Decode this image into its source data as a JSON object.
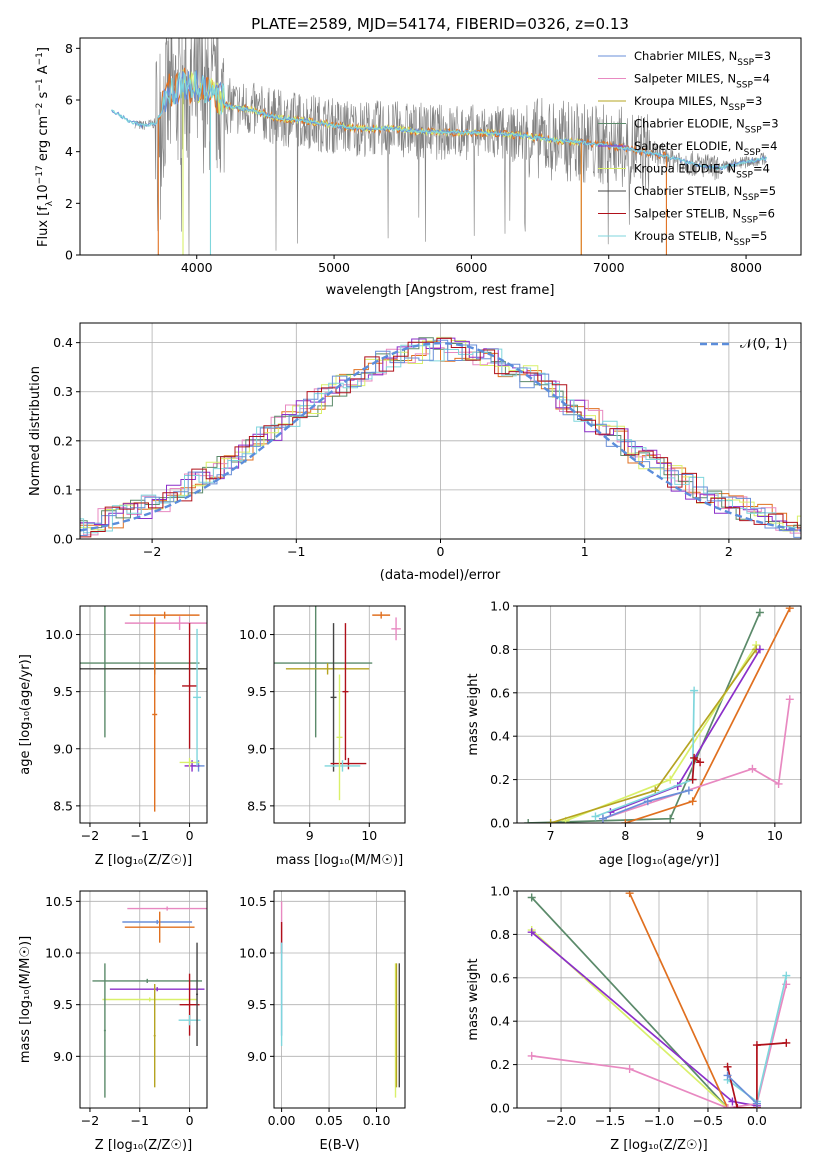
{
  "figure_title": "PLATE=2589, MJD=54174, FIBERID=0326, z=0.13",
  "colors": {
    "Chabrier MILES": "#6a8fd8",
    "Salpeter MILES": "#e889c1",
    "Kroupa MILES": "#b5a422",
    "Chabrier ELODIE": "#5b8a6a",
    "Salpeter ELODIE": "#8b2fc9",
    "Kroupa ELODIE": "#d9f06a",
    "Chabrier STELIB": "#444444",
    "Salpeter STELIB": "#b0101a",
    "Kroupa STELIB": "#7fd6dc",
    "data": "#808080",
    "orange": "#e07020",
    "normal": "#5b8ddb"
  },
  "chart_data": [
    {
      "id": "spectrum",
      "type": "line",
      "title": "PLATE=2589, MJD=54174, FIBERID=0326, z=0.13",
      "xlabel": "wavelength [Angstrom, rest frame]",
      "ylabel_parts": [
        "Flux [f",
        "λ",
        "10",
        "−17",
        " erg cm",
        "−2",
        " s",
        "−1",
        " A",
        "−1",
        "]"
      ],
      "xlim": [
        3150,
        8400
      ],
      "ylim": [
        0,
        8.4
      ],
      "xticks": [
        4000,
        5000,
        6000,
        7000,
        8000
      ],
      "yticks": [
        0,
        2,
        4,
        6,
        8
      ],
      "legend": "top-right",
      "legend_entries": [
        {
          "name": "Chabrier MILES",
          "nssp": "3"
        },
        {
          "name": "Salpeter MILES",
          "nssp": "4"
        },
        {
          "name": "Kroupa MILES",
          "nssp": "3"
        },
        {
          "name": "Chabrier ELODIE",
          "nssp": "3"
        },
        {
          "name": "Salpeter ELODIE",
          "nssp": "4"
        },
        {
          "name": "Kroupa ELODIE",
          "nssp": "4"
        },
        {
          "name": "Chabrier STELIB",
          "nssp": "5"
        },
        {
          "name": "Salpeter STELIB",
          "nssp": "6"
        },
        {
          "name": "Kroupa STELIB",
          "nssp": "5"
        }
      ],
      "continuum": {
        "x": [
          3380,
          3500,
          3600,
          3700,
          3750,
          3800,
          3900,
          4000,
          4100,
          4200,
          4400,
          4600,
          4800,
          5000,
          5200,
          5400,
          5600,
          5800,
          6000,
          6200,
          6400,
          6600,
          6800,
          7000,
          7200,
          7400,
          7600,
          7800,
          8000,
          8150
        ],
        "y": [
          5.6,
          5.2,
          5.0,
          5.1,
          5.6,
          6.1,
          6.3,
          6.3,
          6.0,
          5.8,
          5.6,
          5.3,
          5.2,
          5.0,
          4.9,
          4.9,
          4.8,
          4.75,
          4.75,
          4.7,
          4.6,
          4.45,
          4.35,
          4.25,
          4.05,
          3.85,
          3.55,
          3.35,
          3.6,
          3.75
        ]
      }
    },
    {
      "id": "residuals",
      "type": "histogram",
      "xlabel": "(data-model)/error",
      "ylabel": "Normed distribution",
      "xlim": [
        -2.5,
        2.5
      ],
      "ylim": [
        0,
        0.44
      ],
      "xticks": [
        -2,
        -1,
        0,
        1,
        2
      ],
      "yticks": [
        0.0,
        0.1,
        0.2,
        0.3,
        0.4
      ],
      "legend_label": "𝒩(0, 1)",
      "legend": "top-right",
      "reference": {
        "name": "𝒩(0, 1)",
        "mean": 0,
        "sd": 1
      }
    },
    {
      "id": "age_vs_Z",
      "type": "errorbar",
      "xlabel": "Z [log₁₀(Z/Z☉)]",
      "ylabel": "age  [log₁₀(age/yr)]",
      "xlim": [
        -2.2,
        0.35
      ],
      "ylim": [
        8.35,
        10.25
      ],
      "xticks": [
        -2,
        -1,
        0
      ],
      "yticks": [
        8.5,
        9.0,
        9.5,
        10.0
      ],
      "points": [
        {
          "model": "Chabrier MILES",
          "x": 0.18,
          "y": 8.85,
          "xerr": 0.12,
          "yerr": 0.05
        },
        {
          "model": "Salpeter MILES",
          "x": -0.2,
          "y": 10.1,
          "xerr": 1.1,
          "yerr": 0.06
        },
        {
          "model": "Kroupa MILES",
          "x": -0.7,
          "y": 9.7,
          "xerr": 1.0,
          "yerr": 0.05
        },
        {
          "model": "Chabrier ELODIE",
          "x": -1.7,
          "y": 9.75,
          "xerr": 1.9,
          "yerr": 0.65
        },
        {
          "model": "Salpeter ELODIE",
          "x": 0.05,
          "y": 8.85,
          "xerr": 0.15,
          "yerr": 0.05
        },
        {
          "model": "Kroupa ELODIE",
          "x": 0.0,
          "y": 8.88,
          "xerr": 0.2,
          "yerr": 0.04
        },
        {
          "model": "Chabrier STELIB",
          "x": -0.7,
          "y": 9.7,
          "xerr": 1.6,
          "yerr": 0.05
        },
        {
          "model": "Salpeter STELIB",
          "x": 0.0,
          "y": 9.55,
          "xerr": 0.15,
          "yerr": 0.55
        },
        {
          "model": "Kroupa STELIB",
          "x": 0.15,
          "y": 9.45,
          "xerr": 0.08,
          "yerr": 0.6
        },
        {
          "model": "orange",
          "x": -0.7,
          "y": 9.3,
          "xerr": 0.05,
          "yerr": 0.85
        },
        {
          "model": "orange",
          "x": -0.5,
          "y": 10.17,
          "xerr": 0.7,
          "yerr": 0.03
        }
      ]
    },
    {
      "id": "age_vs_mass",
      "type": "errorbar",
      "xlabel": "mass [log₁₀(M/M☉)]",
      "ylabel": "",
      "xlim": [
        8.4,
        10.6
      ],
      "ylim": [
        8.35,
        10.25
      ],
      "xticks": [
        9,
        10
      ],
      "yticks": [
        8.5,
        9.0,
        9.5,
        10.0
      ],
      "points": [
        {
          "model": "Chabrier ELODIE",
          "x": 9.1,
          "y": 9.75,
          "xerr": 0.95,
          "yerr": 0.65
        },
        {
          "model": "Kroupa MILES",
          "x": 9.3,
          "y": 9.7,
          "xerr": 0.7,
          "yerr": 0.05
        },
        {
          "model": "Chabrier STELIB",
          "x": 9.4,
          "y": 9.45,
          "xerr": 0.05,
          "yerr": 0.65
        },
        {
          "model": "Salpeter STELIB",
          "x": 9.65,
          "y": 8.87,
          "xerr": 0.3,
          "yerr": 0.05
        },
        {
          "model": "Kroupa STELIB",
          "x": 9.55,
          "y": 8.85,
          "xerr": 0.3,
          "yerr": 0.05
        },
        {
          "model": "Salpeter STELIB",
          "x": 9.6,
          "y": 9.5,
          "xerr": 0.05,
          "yerr": 0.6
        },
        {
          "model": "Kroupa ELODIE",
          "x": 9.5,
          "y": 9.1,
          "xerr": 0.05,
          "yerr": 0.55
        },
        {
          "model": "orange",
          "x": 10.2,
          "y": 10.17,
          "xerr": 0.15,
          "yerr": 0.03
        },
        {
          "model": "Salpeter MILES",
          "x": 10.45,
          "y": 10.05,
          "xerr": 0.08,
          "yerr": 0.1
        }
      ]
    },
    {
      "id": "mass_weight_vs_age",
      "type": "line",
      "xlabel": "age  [log₁₀(age/yr)]",
      "ylabel": "mass weight",
      "xlim": [
        6.55,
        10.35
      ],
      "ylim": [
        0,
        1
      ],
      "xticks": [
        7,
        8,
        9,
        10
      ],
      "yticks": [
        0.0,
        0.2,
        0.4,
        0.6,
        0.8,
        1.0
      ],
      "series": [
        {
          "model": "Chabrier ELODIE",
          "x": [
            6.7,
            8.6,
            9.8
          ],
          "y": [
            0.0,
            0.02,
            0.97
          ]
        },
        {
          "model": "Kroupa ELODIE",
          "x": [
            7.2,
            8.6,
            9.75
          ],
          "y": [
            0.01,
            0.2,
            0.82
          ]
        },
        {
          "model": "Kroupa MILES",
          "x": [
            7.0,
            8.4,
            9.75
          ],
          "y": [
            0.0,
            0.15,
            0.8
          ]
        },
        {
          "model": "orange",
          "x": [
            8.0,
            8.9,
            10.2
          ],
          "y": [
            0.0,
            0.1,
            0.99
          ]
        },
        {
          "model": "Salpeter ELODIE",
          "x": [
            7.8,
            8.7,
            9.8
          ],
          "y": [
            0.05,
            0.17,
            0.8
          ]
        },
        {
          "model": "Salpeter MILES",
          "x": [
            7.7,
            9.7,
            10.05,
            10.2
          ],
          "y": [
            0.02,
            0.25,
            0.18,
            0.57
          ]
        },
        {
          "model": "Kroupa STELIB",
          "x": [
            7.6,
            8.9,
            8.92
          ],
          "y": [
            0.03,
            0.2,
            0.61
          ]
        },
        {
          "model": "Chabrier MILES",
          "x": [
            7.7,
            8.3,
            8.85
          ],
          "y": [
            0.02,
            0.1,
            0.15
          ]
        },
        {
          "model": "Salpeter STELIB",
          "x": [
            8.9,
            8.92,
            9.0
          ],
          "y": [
            0.2,
            0.3,
            0.28
          ]
        }
      ]
    },
    {
      "id": "mass_vs_Z",
      "type": "errorbar",
      "xlabel": "Z [log₁₀(Z/Z☉)]",
      "ylabel": "mass [log₁₀(M/M☉)]",
      "xlim": [
        -2.2,
        0.35
      ],
      "ylim": [
        8.5,
        10.6
      ],
      "xticks": [
        -2,
        -1,
        0
      ],
      "yticks": [
        9.0,
        9.5,
        10.0,
        10.5
      ],
      "points": [
        {
          "model": "Salpeter MILES",
          "x": -0.45,
          "y": 10.43,
          "xerr": 0.8,
          "yerr": 0.02
        },
        {
          "model": "Chabrier MILES",
          "x": -0.65,
          "y": 10.3,
          "xerr": 0.7,
          "yerr": 0.02
        },
        {
          "model": "orange",
          "x": -0.6,
          "y": 10.25,
          "xerr": 0.7,
          "yerr": 0.15
        },
        {
          "model": "Chabrier ELODIE",
          "x": -0.85,
          "y": 9.73,
          "xerr": 1.1,
          "yerr": 0.02
        },
        {
          "model": "Salpeter ELODIE",
          "x": -0.65,
          "y": 9.65,
          "xerr": 0.95,
          "yerr": 0.02
        },
        {
          "model": "Kroupa ELODIE",
          "x": -0.8,
          "y": 9.55,
          "xerr": 0.95,
          "yerr": 0.02
        },
        {
          "model": "Chabrier ELODIE",
          "x": -1.7,
          "y": 9.25,
          "xerr": 0.02,
          "yerr": 0.65
        },
        {
          "model": "Kroupa MILES",
          "x": -0.7,
          "y": 9.2,
          "xerr": 0.02,
          "yerr": 0.5
        },
        {
          "model": "Salpeter STELIB",
          "x": 0.0,
          "y": 9.5,
          "xerr": 0.2,
          "yerr": 0.3
        },
        {
          "model": "Kroupa STELIB",
          "x": 0.0,
          "y": 9.35,
          "xerr": 0.22,
          "yerr": 0.05
        },
        {
          "model": "Chabrier STELIB",
          "x": 0.15,
          "y": 9.6,
          "xerr": 0.02,
          "yerr": 0.5
        }
      ]
    },
    {
      "id": "mass_vs_ebv",
      "type": "errorbar",
      "xlabel": "E(B-V)",
      "ylabel": "",
      "xlim": [
        -0.008,
        0.13
      ],
      "ylim": [
        8.5,
        10.6
      ],
      "xticks": [
        0.0,
        0.05,
        0.1
      ],
      "yticks": [
        9.0,
        9.5,
        10.0,
        10.5
      ],
      "points": [
        {
          "model": "Salpeter MILES",
          "x": 0.0,
          "y": 10.25,
          "xerr": 0.0,
          "yerr": 0.25
        },
        {
          "model": "Salpeter STELIB",
          "x": 0.0,
          "y": 10.15,
          "xerr": 0.0,
          "yerr": 0.15
        },
        {
          "model": "Chabrier MILES",
          "x": 0.0,
          "y": 9.65,
          "xerr": 0.0,
          "yerr": 0.45
        },
        {
          "model": "Kroupa STELIB",
          "x": 0.0,
          "y": 9.6,
          "xerr": 0.0,
          "yerr": 0.5
        },
        {
          "model": "Kroupa ELODIE",
          "x": 0.12,
          "y": 9.25,
          "xerr": 0.0,
          "yerr": 0.65
        },
        {
          "model": "Kroupa MILES",
          "x": 0.121,
          "y": 9.3,
          "xerr": 0.0,
          "yerr": 0.6
        },
        {
          "model": "Chabrier STELIB",
          "x": 0.124,
          "y": 9.3,
          "xerr": 0.0,
          "yerr": 0.6
        }
      ]
    },
    {
      "id": "mass_weight_vs_Z",
      "type": "line",
      "xlabel": "Z [log₁₀(Z/Z☉)]",
      "ylabel": "mass weight",
      "xlim": [
        -2.45,
        0.45
      ],
      "ylim": [
        0,
        1
      ],
      "xticks": [
        -2.0,
        -1.5,
        -1.0,
        -0.5,
        0.0
      ],
      "yticks": [
        0.0,
        0.2,
        0.4,
        0.6,
        0.8,
        1.0
      ],
      "series": [
        {
          "model": "Chabrier ELODIE",
          "x": [
            -2.3,
            -0.3,
            0.0
          ],
          "y": [
            0.97,
            0.0,
            0.0
          ]
        },
        {
          "model": "Kroupa ELODIE",
          "x": [
            -2.3,
            -0.3,
            0.0
          ],
          "y": [
            0.82,
            0.0,
            0.0
          ]
        },
        {
          "model": "Salpeter ELODIE",
          "x": [
            -2.3,
            -0.25,
            0.0
          ],
          "y": [
            0.81,
            0.03,
            0.01
          ]
        },
        {
          "model": "orange",
          "x": [
            -1.3,
            -0.3,
            0.0
          ],
          "y": [
            0.99,
            0.0,
            0.0
          ]
        },
        {
          "model": "Salpeter MILES",
          "x": [
            -2.3,
            -1.3,
            -0.3,
            0.0,
            0.3
          ],
          "y": [
            0.24,
            0.18,
            0.0,
            0.02,
            0.57
          ]
        },
        {
          "model": "Kroupa STELIB",
          "x": [
            -0.3,
            0.0,
            0.3
          ],
          "y": [
            0.13,
            0.03,
            0.61
          ]
        },
        {
          "model": "Salpeter STELIB",
          "x": [
            -0.3,
            -0.2,
            0.0,
            0.0,
            0.3
          ],
          "y": [
            0.19,
            0.0,
            0.0,
            0.29,
            0.3
          ]
        },
        {
          "model": "Chabrier MILES",
          "x": [
            -0.3,
            0.0
          ],
          "y": [
            0.15,
            0.02
          ]
        }
      ]
    }
  ]
}
